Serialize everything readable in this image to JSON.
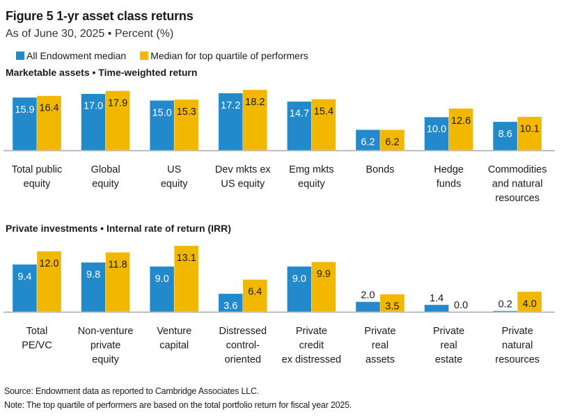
{
  "header": {
    "title": "Figure 5   1-yr asset class returns",
    "subtitle": "As of June 30, 2025 • Percent (%)"
  },
  "legend": [
    {
      "label": "All Endowment median",
      "color": "#228ACB"
    },
    {
      "label": "Median for top quartile of performers",
      "color": "#F2B800"
    }
  ],
  "chart_data": [
    {
      "type": "bar",
      "title": "Marketable assets • Time-weighted return",
      "xlabel": "",
      "ylabel": "Percent (%)",
      "ylim": [
        0,
        20
      ],
      "grid": false,
      "categories": [
        [
          "Total public",
          "equity"
        ],
        [
          "Global",
          "equity"
        ],
        [
          "US",
          "equity"
        ],
        [
          "Dev mkts ex",
          "US equity"
        ],
        [
          "Emg mkts",
          "equity"
        ],
        [
          "Bonds"
        ],
        [
          "Hedge",
          "funds"
        ],
        [
          "Commodities",
          "and natural",
          "resources"
        ]
      ],
      "series": [
        {
          "name": "All Endowment median",
          "color": "#228ACB",
          "values": [
            15.9,
            17.0,
            15.0,
            17.2,
            14.7,
            6.2,
            10.0,
            8.6
          ]
        },
        {
          "name": "Median for top quartile of performers",
          "color": "#F2B800",
          "values": [
            16.4,
            17.9,
            15.3,
            18.2,
            15.4,
            6.2,
            12.6,
            10.1
          ]
        }
      ]
    },
    {
      "type": "bar",
      "title": "Private investments • Internal rate of return (IRR)",
      "xlabel": "",
      "ylabel": "Percent (%)",
      "ylim": [
        0,
        14
      ],
      "grid": false,
      "categories": [
        [
          "Total",
          "PE/VC"
        ],
        [
          "Non-venture",
          "private",
          "equity"
        ],
        [
          "Venture",
          "capital"
        ],
        [
          "Distressed",
          "control-",
          "oriented"
        ],
        [
          "Private",
          "credit",
          "ex distressed"
        ],
        [
          "Private",
          "real",
          "assets"
        ],
        [
          "Private",
          "real",
          "estate"
        ],
        [
          "Private",
          "natural",
          "resources"
        ]
      ],
      "series": [
        {
          "name": "All Endowment median",
          "color": "#228ACB",
          "values": [
            9.4,
            9.8,
            9.0,
            3.6,
            9.0,
            2.0,
            1.4,
            0.2
          ]
        },
        {
          "name": "Median for top quartile of performers",
          "color": "#F2B800",
          "values": [
            12.0,
            11.8,
            13.1,
            6.4,
            9.9,
            3.5,
            0.0,
            4.0
          ]
        }
      ]
    }
  ],
  "footer": {
    "source": "Source: Endowment data as reported to Cambridge Associates LLC.",
    "note": "Note: The top quartile of performers are based on the total portfolio return for fiscal year 2025."
  }
}
